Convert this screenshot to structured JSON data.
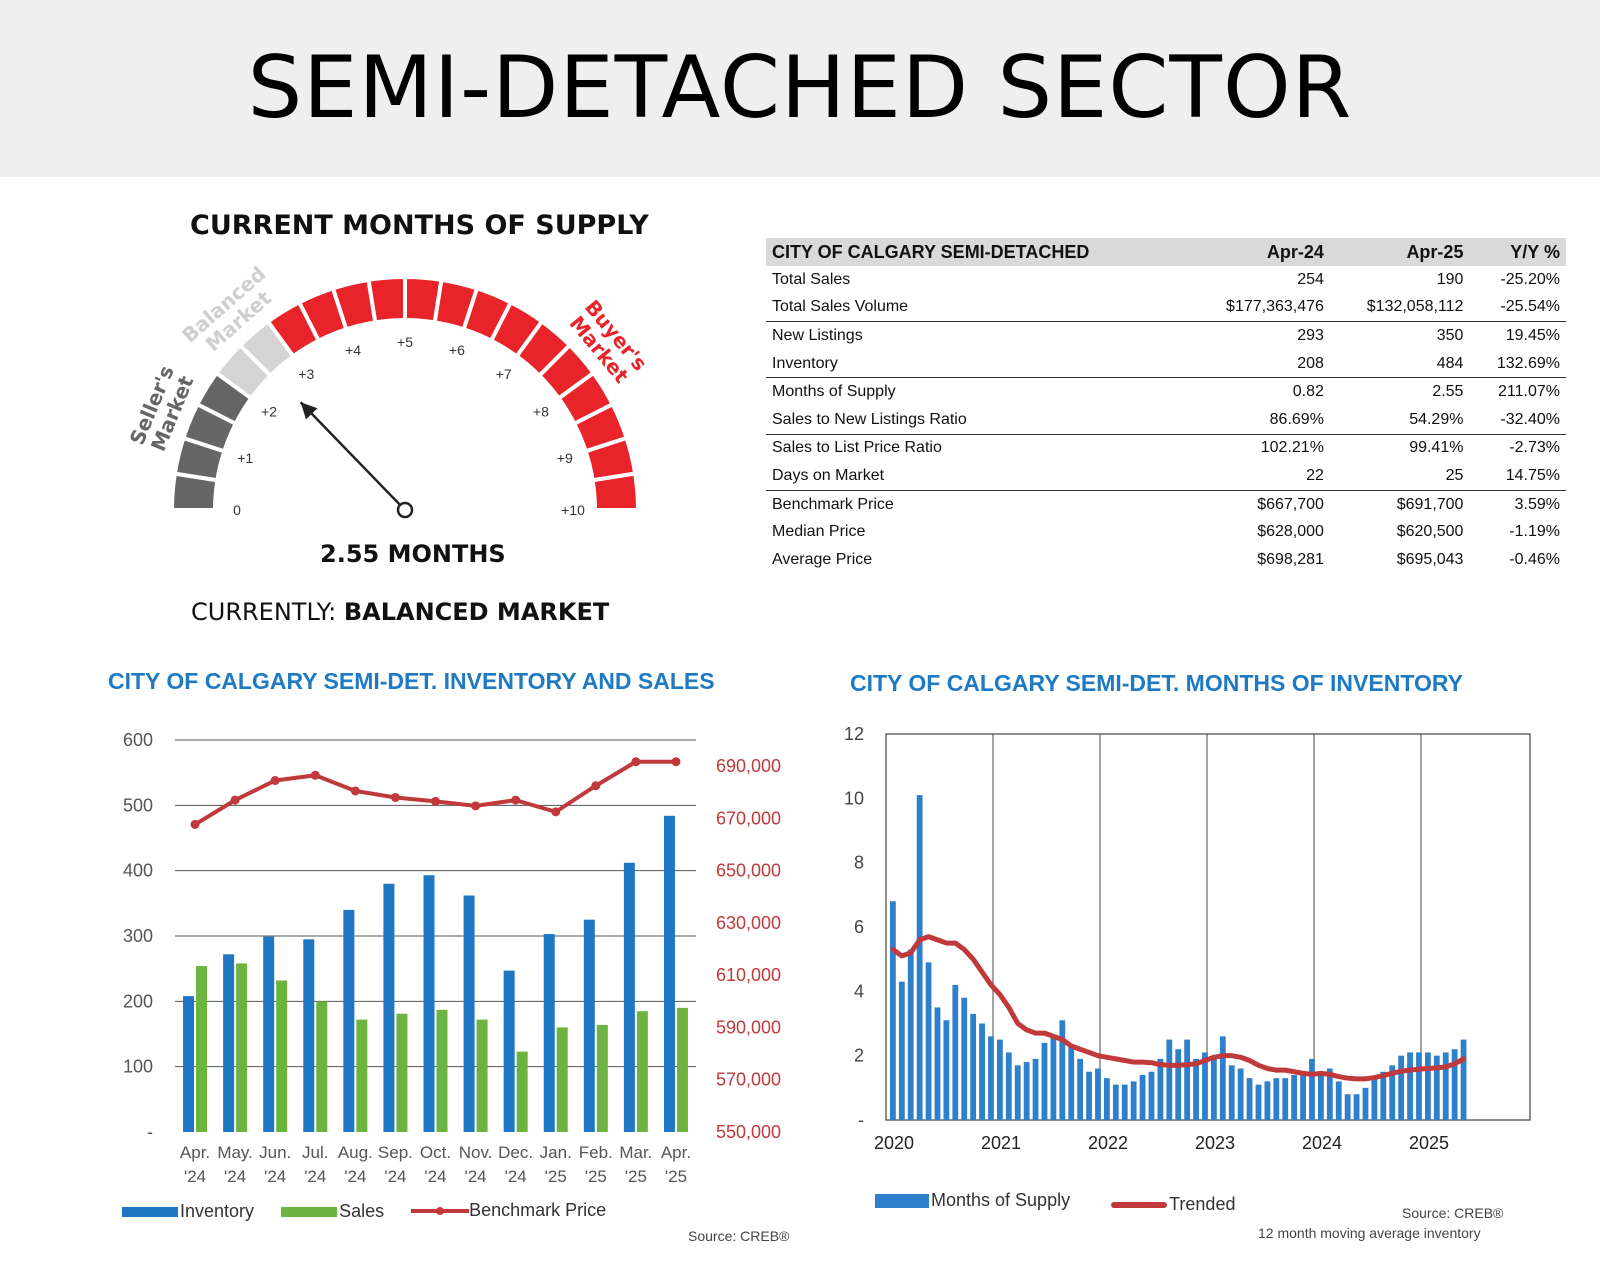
{
  "page": {
    "title": "SEMI-DETACHED SECTOR"
  },
  "gauge": {
    "title": "CURRENT MONTHS OF SUPPLY",
    "value": 2.55,
    "value_label": "2.55 MONTHS",
    "status_prefix": "CURRENTLY: ",
    "status": "BALANCED MARKET",
    "zones": {
      "seller": "Seller's Market",
      "balanced": "Balanced Market",
      "buyer": "Buyer's Market"
    },
    "zone_labels": {
      "seller": [
        "Seller's",
        "Market"
      ],
      "balanced": [
        "Balanced",
        "Market"
      ],
      "buyer": [
        "Buyer's",
        "Market"
      ]
    },
    "colors": {
      "seller": "#666666",
      "balanced": "#d4d4d4",
      "buyer": "#e8232a"
    },
    "ticks": [
      "0",
      "+1",
      "+2",
      "+3",
      "+4",
      "+5",
      "+6",
      "+7",
      "+8",
      "+9",
      "+10"
    ]
  },
  "table": {
    "headers": [
      "CITY OF CALGARY SEMI-DETACHED",
      "Apr-24",
      "Apr-25",
      "Y/Y %"
    ],
    "rows": [
      [
        "Total Sales",
        "254",
        "190",
        "-25.20%"
      ],
      [
        "Total Sales Volume",
        "$177,363,476",
        "$132,058,112",
        "-25.54%"
      ],
      [
        "New Listings",
        "293",
        "350",
        "19.45%"
      ],
      [
        "Inventory",
        "208",
        "484",
        "132.69%"
      ],
      [
        "Months of Supply",
        "0.82",
        "2.55",
        "211.07%"
      ],
      [
        "Sales to New Listings Ratio",
        "86.69%",
        "54.29%",
        "-32.40%"
      ],
      [
        "Sales to List Price Ratio",
        "102.21%",
        "99.41%",
        "-2.73%"
      ],
      [
        "Days on Market",
        "22",
        "25",
        "14.75%"
      ],
      [
        "Benchmark Price",
        "$667,700",
        "$691,700",
        "3.59%"
      ],
      [
        "Median Price",
        "$628,000",
        "$620,500",
        "-1.19%"
      ],
      [
        "Average Price",
        "$698,281",
        "$695,043",
        "-0.46%"
      ]
    ]
  },
  "chart_data": [
    {
      "type": "bar",
      "title": "CITY OF CALGARY SEMI-DET. INVENTORY AND SALES",
      "categories": [
        [
          "Apr.",
          "'24"
        ],
        [
          "May.",
          "'24"
        ],
        [
          "Jun.",
          "'24"
        ],
        [
          "Jul.",
          "'24"
        ],
        [
          "Aug.",
          "'24"
        ],
        [
          "Sep.",
          "'24"
        ],
        [
          "Oct.",
          "'24"
        ],
        [
          "Nov.",
          "'24"
        ],
        [
          "Dec.",
          "'24"
        ],
        [
          "Jan.",
          "'25"
        ],
        [
          "Feb.",
          "'25"
        ],
        [
          "Mar.",
          "'25"
        ],
        [
          "Apr.",
          "'25"
        ]
      ],
      "series": [
        {
          "name": "Inventory",
          "type": "bar",
          "axis": "left",
          "color": "#1f77c4",
          "values": [
            208,
            272,
            299,
            295,
            340,
            380,
            393,
            362,
            247,
            303,
            325,
            412,
            484
          ]
        },
        {
          "name": "Sales",
          "type": "bar",
          "axis": "left",
          "color": "#6db33f",
          "values": [
            254,
            258,
            232,
            200,
            172,
            181,
            187,
            172,
            123,
            160,
            164,
            185,
            190
          ]
        },
        {
          "name": "Benchmark Price",
          "type": "line",
          "axis": "right",
          "color": "#c0393b",
          "values": [
            667700,
            677000,
            684500,
            686500,
            680500,
            678000,
            676500,
            674800,
            677000,
            672500,
            682500,
            691700,
            691700
          ]
        }
      ],
      "y_left": {
        "ticks": [
          "-",
          "100",
          "200",
          "300",
          "400",
          "500",
          "600"
        ],
        "ylim": [
          0,
          600
        ]
      },
      "y_right": {
        "ticks": [
          "550,000",
          "570,000",
          "590,000",
          "610,000",
          "630,000",
          "650,000",
          "670,000",
          "690,000"
        ],
        "ylim": [
          550000,
          700000
        ]
      },
      "grid": true,
      "legend": "bottom",
      "source": "Source: CREB®"
    },
    {
      "type": "bar",
      "title": "CITY OF CALGARY SEMI-DET. MONTHS OF INVENTORY",
      "x_ticks": [
        "2020",
        "2021",
        "2022",
        "2023",
        "2024",
        "2025"
      ],
      "series": [
        {
          "name": "Months of Supply",
          "type": "bar",
          "color": "#2e7fcc",
          "values": [
            6.8,
            4.3,
            5.3,
            10.1,
            4.9,
            3.5,
            3.1,
            4.2,
            3.8,
            3.3,
            3.0,
            2.6,
            2.5,
            2.1,
            1.7,
            1.8,
            1.9,
            2.4,
            2.6,
            3.1,
            2.3,
            1.9,
            1.5,
            1.6,
            1.3,
            1.1,
            1.1,
            1.2,
            1.4,
            1.5,
            1.9,
            2.5,
            2.2,
            2.5,
            1.9,
            2.1,
            2.0,
            2.6,
            1.7,
            1.6,
            1.3,
            1.1,
            1.2,
            1.3,
            1.3,
            1.4,
            1.5,
            1.9,
            1.5,
            1.6,
            1.2,
            0.8,
            0.8,
            1.0,
            1.3,
            1.5,
            1.7,
            2.0,
            2.1,
            2.1,
            2.1,
            2.0,
            2.1,
            2.2,
            2.5
          ]
        },
        {
          "name": "Trended",
          "type": "line",
          "color": "#c0393b",
          "values": [
            5.3,
            5.1,
            5.2,
            5.6,
            5.7,
            5.6,
            5.5,
            5.5,
            5.3,
            5.0,
            4.6,
            4.2,
            3.9,
            3.5,
            3.0,
            2.8,
            2.7,
            2.7,
            2.6,
            2.5,
            2.3,
            2.2,
            2.1,
            2.0,
            1.95,
            1.9,
            1.85,
            1.8,
            1.8,
            1.78,
            1.72,
            1.7,
            1.7,
            1.72,
            1.75,
            1.85,
            1.95,
            2.0,
            2.0,
            1.95,
            1.85,
            1.7,
            1.6,
            1.55,
            1.55,
            1.5,
            1.45,
            1.42,
            1.45,
            1.42,
            1.35,
            1.3,
            1.28,
            1.28,
            1.32,
            1.38,
            1.45,
            1.52,
            1.55,
            1.58,
            1.6,
            1.62,
            1.65,
            1.75,
            1.9
          ]
        }
      ],
      "y": {
        "ticks": [
          "-",
          "2",
          "4",
          "6",
          "8",
          "10",
          "12"
        ],
        "ylim": [
          0,
          12
        ]
      },
      "grid": true,
      "legend": "bottom-left",
      "source": "Source: CREB®",
      "note": "12 month moving average inventory"
    }
  ]
}
